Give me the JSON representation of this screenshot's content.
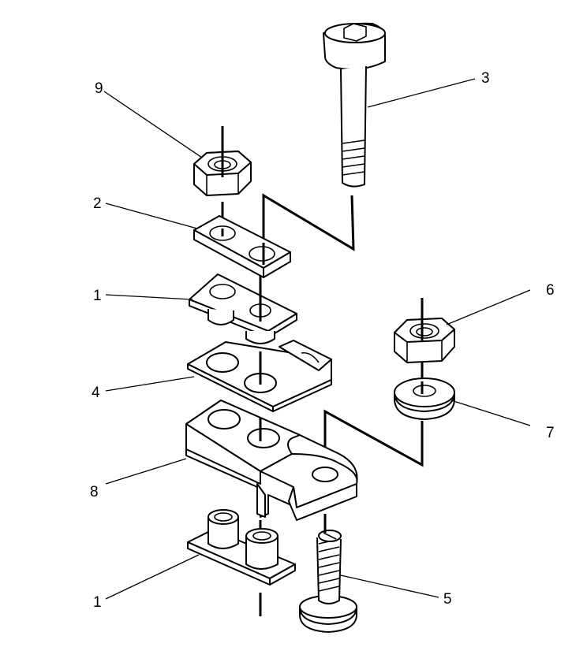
{
  "callouts": [
    {
      "id": "c9",
      "label": "9"
    },
    {
      "id": "c3",
      "label": "3"
    },
    {
      "id": "c2",
      "label": "2"
    },
    {
      "id": "c1a",
      "label": "1"
    },
    {
      "id": "c6",
      "label": "6"
    },
    {
      "id": "c4",
      "label": "4"
    },
    {
      "id": "c7",
      "label": "7"
    },
    {
      "id": "c8",
      "label": "8"
    },
    {
      "id": "c5",
      "label": "5"
    },
    {
      "id": "c1b",
      "label": "1"
    }
  ]
}
